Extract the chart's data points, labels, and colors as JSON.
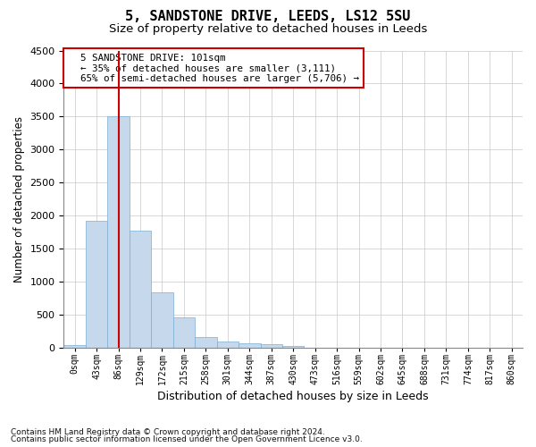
{
  "title_line1": "5, SANDSTONE DRIVE, LEEDS, LS12 5SU",
  "title_line2": "Size of property relative to detached houses in Leeds",
  "xlabel": "Distribution of detached houses by size in Leeds",
  "ylabel": "Number of detached properties",
  "bar_values": [
    50,
    1920,
    3500,
    1780,
    840,
    460,
    160,
    100,
    70,
    55,
    35,
    0,
    0,
    0,
    0,
    0,
    0,
    0,
    0,
    0
  ],
  "bar_labels": [
    "0sqm",
    "43sqm",
    "86sqm",
    "129sqm",
    "172sqm",
    "215sqm",
    "258sqm",
    "301sqm",
    "344sqm",
    "387sqm",
    "430sqm",
    "473sqm",
    "516sqm",
    "559sqm",
    "602sqm",
    "645sqm",
    "688sqm",
    "731sqm",
    "774sqm",
    "817sqm",
    "860sqm"
  ],
  "bar_color": "#c5d8ec",
  "bar_edgecolor": "#7aafd4",
  "background_color": "#ffffff",
  "grid_color": "#c8c8c8",
  "annotation_text": "  5 SANDSTONE DRIVE: 101sqm\n  ← 35% of detached houses are smaller (3,111)\n  65% of semi-detached houses are larger (5,706) →",
  "annotation_box_facecolor": "#ffffff",
  "annotation_box_edgecolor": "#cc0000",
  "vline_color": "#cc0000",
  "property_bin_index": 2,
  "ylim_max": 4500,
  "yticks": [
    0,
    500,
    1000,
    1500,
    2000,
    2500,
    3000,
    3500,
    4000,
    4500
  ],
  "footnote_line1": "Contains HM Land Registry data © Crown copyright and database right 2024.",
  "footnote_line2": "Contains public sector information licensed under the Open Government Licence v3.0.",
  "title_fontsize": 11,
  "subtitle_fontsize": 9.5
}
